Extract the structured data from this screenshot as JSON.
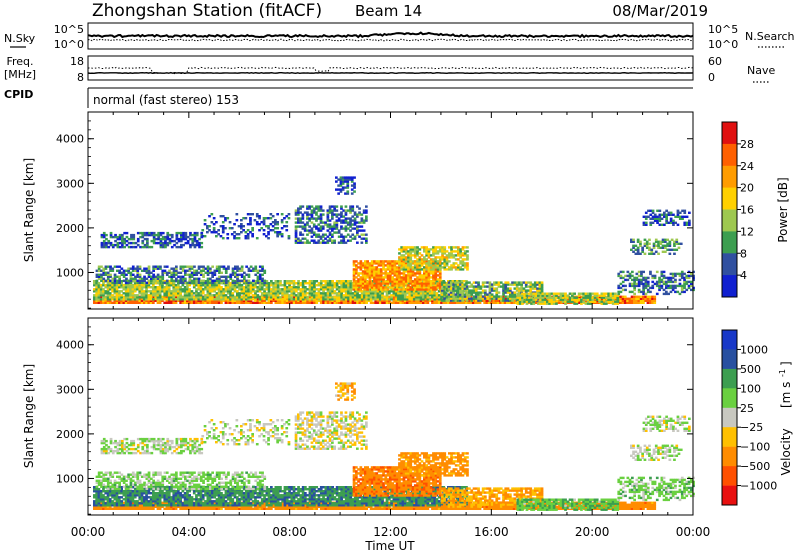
{
  "header": {
    "title": "Zhongshan Station (fitACF)",
    "beam": "Beam 14",
    "date": "08/Mar/2019"
  },
  "top_panels": {
    "nsky_label": "N.Sky",
    "nsky_ticks": [
      "10^5",
      "10^0"
    ],
    "nsearch_label": "N.Search",
    "nsearch_ticks": [
      "10^5",
      "10^0"
    ],
    "freq_label_line1": "Freq.",
    "freq_label_line2": "[MHz]",
    "freq_ticks": [
      "18",
      "8"
    ],
    "nave_label": "Nave",
    "nave_ticks": [
      "60",
      "0"
    ],
    "cpid_label": "CPID",
    "cpid_text": "normal (fast stereo) 153"
  },
  "colorbars": {
    "power": {
      "label": "Power [dB]",
      "ticks": [
        "28",
        "24",
        "20",
        "16",
        "12",
        "8",
        "4"
      ],
      "colors": [
        "#e01010",
        "#ff6000",
        "#ff9c00",
        "#ffd000",
        "#9ec850",
        "#3c9e50",
        "#3050a0",
        "#1020d0"
      ]
    },
    "velocity": {
      "label_main": "Velocity",
      "label_unit": "[m s",
      "label_sup": "-1",
      "label_close": "]",
      "ticks": [
        "1000",
        "500",
        "100",
        "25",
        "−25",
        "−100",
        "−500",
        "−1000"
      ],
      "colors": [
        "#1838c8",
        "#2850a0",
        "#3c9e50",
        "#6ad040",
        "#c8c8c0",
        "#ffc000",
        "#ff8c00",
        "#ff5000",
        "#e81010"
      ]
    }
  },
  "chart_data": {
    "type": "heatmap",
    "x_axis_label": "Time UT",
    "x_tick_labels": [
      "00:00",
      "04:00",
      "08:00",
      "12:00",
      "16:00",
      "20:00",
      "00:00"
    ],
    "x_range_hours": [
      0,
      24
    ],
    "y_axis_label": "Slant Range [km]",
    "y_tick_labels": [
      "1000",
      "2000",
      "3000",
      "4000"
    ],
    "y_range_km": [
      180,
      4600
    ],
    "grid": false,
    "scatter_regions": [
      {
        "t": [
          0.2,
          22.5
        ],
        "r": [
          300,
          460
        ],
        "p": 24,
        "v": -300,
        "d": 0.95
      },
      {
        "t": [
          0.2,
          15.0
        ],
        "r": [
          380,
          800
        ],
        "p": 14,
        "v": 400,
        "d": 0.88
      },
      {
        "t": [
          0.3,
          7.0
        ],
        "r": [
          750,
          1150
        ],
        "p": 8,
        "v": 50,
        "d": 0.6
      },
      {
        "t": [
          0.5,
          4.5
        ],
        "r": [
          1550,
          1900
        ],
        "p": 6,
        "v": 20,
        "d": 0.55
      },
      {
        "t": [
          4.5,
          8.0
        ],
        "r": [
          1750,
          2300
        ],
        "p": 5,
        "v": 15,
        "d": 0.3
      },
      {
        "t": [
          8.2,
          11.0
        ],
        "r": [
          1650,
          2500
        ],
        "p": 7,
        "v": -15,
        "d": 0.5
      },
      {
        "t": [
          9.8,
          10.6
        ],
        "r": [
          2750,
          3150
        ],
        "p": 5,
        "v": -80,
        "d": 0.55
      },
      {
        "t": [
          10.5,
          14.0
        ],
        "r": [
          600,
          1250
        ],
        "p": 22,
        "v": -400,
        "d": 0.85
      },
      {
        "t": [
          12.3,
          15.0
        ],
        "r": [
          1050,
          1550
        ],
        "p": 16,
        "v": -200,
        "d": 0.7
      },
      {
        "t": [
          14.0,
          18.0
        ],
        "r": [
          350,
          800
        ],
        "p": 12,
        "v": -100,
        "d": 0.7
      },
      {
        "t": [
          17.0,
          21.0
        ],
        "r": [
          280,
          550
        ],
        "p": 14,
        "v": 80,
        "d": 0.75
      },
      {
        "t": [
          21.0,
          24.0
        ],
        "r": [
          500,
          1000
        ],
        "p": 8,
        "v": 60,
        "d": 0.45
      },
      {
        "t": [
          21.5,
          23.5
        ],
        "r": [
          1400,
          1750
        ],
        "p": 10,
        "v": 20,
        "d": 0.55
      },
      {
        "t": [
          22.0,
          23.8
        ],
        "r": [
          2050,
          2400
        ],
        "p": 5,
        "v": 20,
        "d": 0.55
      }
    ]
  }
}
